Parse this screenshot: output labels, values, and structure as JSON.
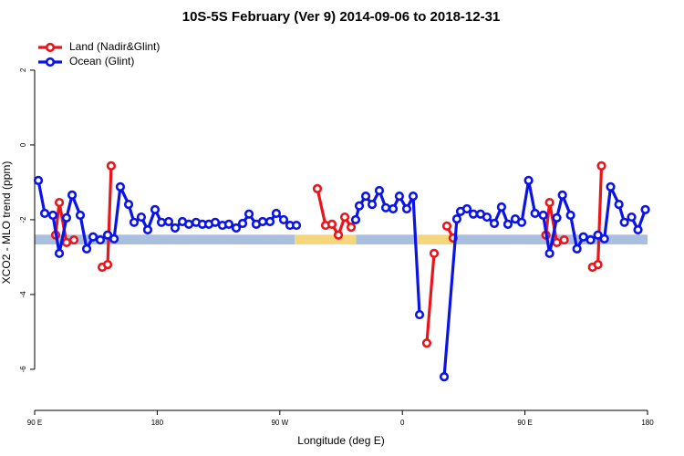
{
  "chart_data": {
    "type": "line",
    "title": "10S-5S February (Ver 9)   2014-09-06 to 2018-12-31",
    "x_label": "Longitude (deg E)",
    "y_label": "XCO2 - MLO trend (ppm)",
    "xlim": [
      90,
      540
    ],
    "xticks": [
      {
        "value": 90,
        "label": "90 E"
      },
      180,
      {
        "value": 270,
        "label": "90 W"
      },
      {
        "value": 360,
        "label": "0"
      },
      {
        "value": 450,
        "label": "90 E"
      },
      {
        "value": 540,
        "label": "180"
      }
    ],
    "ylim": [
      -7.1,
      2.95
    ],
    "yticks": [
      2,
      0,
      -2,
      -4,
      -6
    ],
    "legend": "top-left",
    "band": {
      "range": [
        -2.4,
        -2.66
      ],
      "segments": [
        {
          "xlim": [
            90,
            281
          ],
          "color": "#a9bfdf"
        },
        {
          "xlim": [
            281,
            326
          ],
          "color": "#f6d67a"
        },
        {
          "xlim": [
            326,
            369
          ],
          "color": "#a9bfdf"
        },
        {
          "xlim": [
            369,
            399
          ],
          "color": "#f6d67a"
        },
        {
          "xlim": [
            399,
            540
          ],
          "color": "#a9bfdf"
        }
      ]
    },
    "series": [
      {
        "name": "Land (Nadir&Glint)",
        "color": "#e8151b",
        "x": [
          105.4,
          108.1,
          113.4,
          118.8,
          null,
          139.6,
          143.6,
          146.2,
          null,
          297.6,
          303.6,
          308.3,
          313.0,
          317.7,
          322.4,
          null,
          377.9,
          383.3,
          null,
          392.7,
          397.3,
          null,
          465.4,
          468.1,
          473.4,
          478.8,
          null,
          499.6,
          503.6,
          506.2
        ],
        "values": [
          -2.41,
          -1.54,
          -2.61,
          -2.54,
          null,
          -3.27,
          -3.2,
          -0.56,
          null,
          -1.17,
          -2.15,
          -2.12,
          -2.41,
          -1.93,
          -2.2,
          null,
          -5.3,
          -2.9,
          null,
          -2.17,
          -2.49,
          null,
          -2.41,
          -1.54,
          -2.61,
          -2.54,
          null,
          -3.27,
          -3.2,
          -0.56
        ]
      },
      {
        "name": "Ocean (Glint)",
        "color": "#0b14e6",
        "x": [
          92.7,
          97.4,
          103.4,
          108.1,
          113.4,
          117.5,
          123.5,
          128.2,
          132.9,
          138.2,
          143.6,
          148.3,
          152.9,
          159.0,
          163.0,
          168.3,
          173.0,
          178.4,
          183.1,
          188.4,
          193.1,
          198.5,
          203.2,
          208.5,
          213.2,
          217.9,
          222.6,
          227.9,
          232.6,
          238.0,
          242.7,
          247.4,
          252.7,
          257.4,
          262.8,
          267.4,
          272.8,
          277.5,
          282.2,
          null,
          325.7,
          328.4,
          333.1,
          337.8,
          343.1,
          347.8,
          353.2,
          357.8,
          363.2,
          367.9,
          372.6,
          null,
          390.7,
          400.0,
          402.7,
          407.4,
          412.1,
          417.4,
          422.1,
          427.5,
          432.8,
          437.5,
          442.9,
          447.6,
          452.7,
          457.4,
          463.4,
          468.1,
          473.4,
          477.5,
          483.5,
          488.2,
          492.9,
          498.2,
          503.6,
          508.3,
          512.9,
          519.0,
          523.0,
          528.3,
          533.0,
          538.4
        ],
        "values": [
          -0.95,
          -1.83,
          -1.88,
          -2.9,
          -1.95,
          -1.34,
          -1.88,
          -2.78,
          -2.46,
          -2.54,
          -2.41,
          -2.51,
          -1.12,
          -1.59,
          -2.07,
          -1.93,
          -2.27,
          -1.73,
          -2.07,
          -2.05,
          -2.22,
          -2.05,
          -2.12,
          -2.07,
          -2.12,
          -2.12,
          -2.07,
          -2.15,
          -2.12,
          -2.22,
          -2.1,
          -1.85,
          -2.12,
          -2.05,
          -2.05,
          -1.83,
          -2.0,
          -2.15,
          -2.15,
          null,
          -2.0,
          -1.63,
          -1.37,
          -1.59,
          -1.22,
          -1.68,
          -1.71,
          -1.37,
          -1.71,
          -1.37,
          -4.54,
          null,
          -6.2,
          -1.98,
          -1.78,
          -1.71,
          -1.85,
          -1.85,
          -1.93,
          -2.1,
          -1.66,
          -2.12,
          -1.98,
          -2.07,
          -0.95,
          -1.83,
          -1.88,
          -2.9,
          -1.95,
          -1.34,
          -1.88,
          -2.78,
          -2.46,
          -2.54,
          -2.41,
          -2.51,
          -1.12,
          -1.59,
          -2.07,
          -1.93,
          -2.27,
          -1.73
        ]
      }
    ]
  }
}
